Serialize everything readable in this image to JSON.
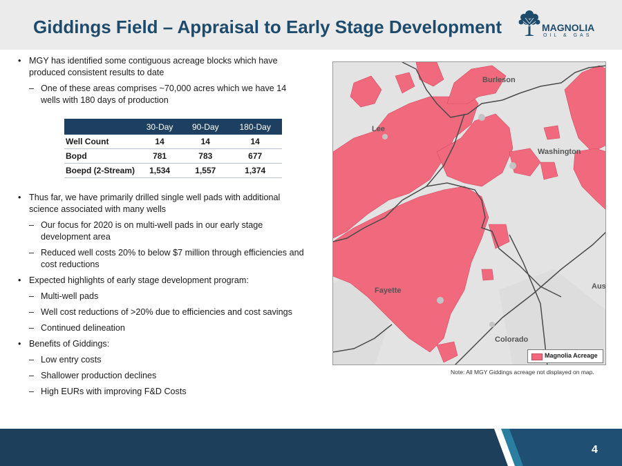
{
  "header": {
    "title": "Giddings Field – Appraisal to Early Stage Development",
    "logo_text": "MAGNOLIA",
    "logo_sub": "OIL & GAS"
  },
  "bullets": [
    {
      "level": 1,
      "text": "MGY has identified some contiguous acreage blocks which have produced consistent results to date"
    },
    {
      "level": 2,
      "text": "One of these areas comprises ~70,000 acres which we have 14 wells with 180 days of production"
    },
    {
      "level": 1,
      "text": "Thus far, we have primarily drilled single well pads with additional science associated with many wells"
    },
    {
      "level": 2,
      "text": "Our focus for 2020 is on multi-well pads in our early stage development area"
    },
    {
      "level": 2,
      "text": "Reduced well costs 20% to below $7 million through efficiencies and cost reductions"
    },
    {
      "level": 1,
      "text": "Expected highlights of early stage development program:"
    },
    {
      "level": 2,
      "text": "Multi-well pads"
    },
    {
      "level": 2,
      "text": "Well cost reductions of >20% due to efficiencies and cost savings"
    },
    {
      "level": 2,
      "text": "Continued delineation"
    },
    {
      "level": 1,
      "text": "Benefits of Giddings:"
    },
    {
      "level": 2,
      "text": "Low entry costs"
    },
    {
      "level": 2,
      "text": "Shallower production declines"
    },
    {
      "level": 2,
      "text": "High EURs with improving F&D Costs"
    }
  ],
  "table": {
    "headers": [
      "",
      "30-Day",
      "90-Day",
      "180-Day"
    ],
    "rows": [
      [
        "Well Count",
        "14",
        "14",
        "14"
      ],
      [
        "Bopd",
        "781",
        "783",
        "677"
      ],
      [
        "Boepd (2-Stream)",
        "1,534",
        "1,557",
        "1,374"
      ]
    ]
  },
  "map": {
    "labels": {
      "burleson": "Burleson",
      "lee": "Lee",
      "washington": "Washington",
      "fayette": "Fayette",
      "austin": "Aus",
      "colorado": "Colorado"
    },
    "legend": "Magnolia Acreage",
    "acreage_color": "#f0697c"
  },
  "note": "Note: All MGY Giddings acreage not displayed on map.",
  "footer": {
    "page_number": "4"
  },
  "colors": {
    "brand_navy": "#1e3f5c",
    "title_blue": "#1e4b6b",
    "accent_teal": "#2a7fa0"
  }
}
